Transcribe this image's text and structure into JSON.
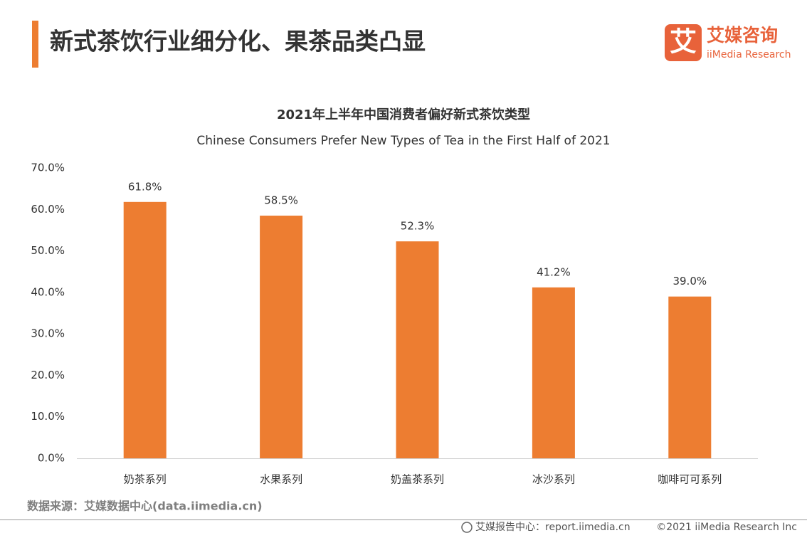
{
  "header": {
    "title": "新式茶饮行业细分化、果茶品类凸显"
  },
  "logo": {
    "icon_text": "艾",
    "name": "艾媒咨询",
    "name_en": "iiMedia Research"
  },
  "chart_data": {
    "type": "bar",
    "title": "2021年上半年中国消费者偏好新式茶饮类型",
    "subtitle": "Chinese Consumers Prefer New Types of Tea in the First Half of 2021",
    "categories": [
      "奶茶系列",
      "水果系列",
      "奶盖茶系列",
      "冰沙系列",
      "咖啡可可系列"
    ],
    "values": [
      61.8,
      58.5,
      52.3,
      41.2,
      39.0
    ],
    "value_labels": [
      "61.8%",
      "58.5%",
      "52.3%",
      "41.2%",
      "39.0%"
    ],
    "color": "#ed7d31",
    "ylim": [
      0,
      70
    ],
    "yticks": [
      {
        "value": 0,
        "label": "0.0%"
      },
      {
        "value": 10,
        "label": "10.0%"
      },
      {
        "value": 20,
        "label": "20.0%"
      },
      {
        "value": 30,
        "label": "30.0%"
      },
      {
        "value": 40,
        "label": "40.0%"
      },
      {
        "value": 50,
        "label": "50.0%"
      },
      {
        "value": 60,
        "label": "60.0%"
      },
      {
        "value": 70,
        "label": "70.0%"
      }
    ],
    "grid": false
  },
  "source": "数据来源：艾媒数据中心(data.iimedia.cn)",
  "footer": {
    "left": "艾媒报告中心：report.iimedia.cn",
    "right": "©2021  iiMedia Research  Inc"
  }
}
